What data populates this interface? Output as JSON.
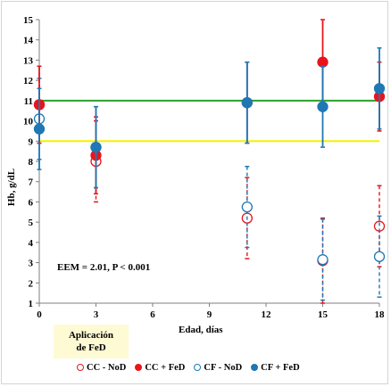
{
  "chart_data": {
    "type": "scatter",
    "xlabel": "Edad, días",
    "ylabel": "Hb, g/dL",
    "x_ticks": [
      0,
      3,
      6,
      9,
      12,
      15,
      18
    ],
    "y_ticks": [
      1,
      2,
      3,
      4,
      5,
      6,
      7,
      8,
      9,
      10,
      11,
      12,
      13,
      14,
      15
    ],
    "xlim": [
      0,
      18
    ],
    "ylim": [
      1,
      15
    ],
    "grid": false,
    "legend_position": "bottom",
    "reference_lines": [
      {
        "y": 11,
        "color": "#2ca02c"
      },
      {
        "y": 9,
        "color": "#f2f200"
      }
    ],
    "annotation": "EEM = 2.01, P < 0.001",
    "series": [
      {
        "name": "CC - NoD",
        "color": "#e8141b",
        "filled": false,
        "dashed": true,
        "x": [
          0,
          3,
          11,
          15,
          18
        ],
        "y": [
          10.8,
          8.0,
          5.2,
          3.1,
          4.8
        ],
        "err": [
          1.9,
          2.0,
          2.0,
          2.1,
          2.0
        ]
      },
      {
        "name": "CC + FeD",
        "color": "#e8141b",
        "filled": true,
        "dashed": false,
        "x": [
          0,
          3,
          11,
          15,
          18
        ],
        "y": [
          10.8,
          8.3,
          10.9,
          12.9,
          11.2
        ],
        "err": [
          1.9,
          1.9,
          2.0,
          2.1,
          1.7
        ]
      },
      {
        "name": "CF - NoD",
        "color": "#1f77b4",
        "filled": false,
        "dashed": true,
        "x": [
          0,
          3,
          11,
          15,
          18
        ],
        "y": [
          10.1,
          8.7,
          5.75,
          3.15,
          3.3
        ],
        "err": [
          2.0,
          2.0,
          2.0,
          2.0,
          2.0
        ]
      },
      {
        "name": "CF + FeD",
        "color": "#1f77b4",
        "filled": true,
        "dashed": false,
        "x": [
          0,
          3,
          11,
          15,
          18
        ],
        "y": [
          9.6,
          8.7,
          10.9,
          10.7,
          11.6
        ],
        "err": [
          2.0,
          2.0,
          2.0,
          2.0,
          2.0
        ]
      }
    ]
  },
  "application_note": {
    "line1": "Aplicación",
    "line2": "de FeD"
  }
}
